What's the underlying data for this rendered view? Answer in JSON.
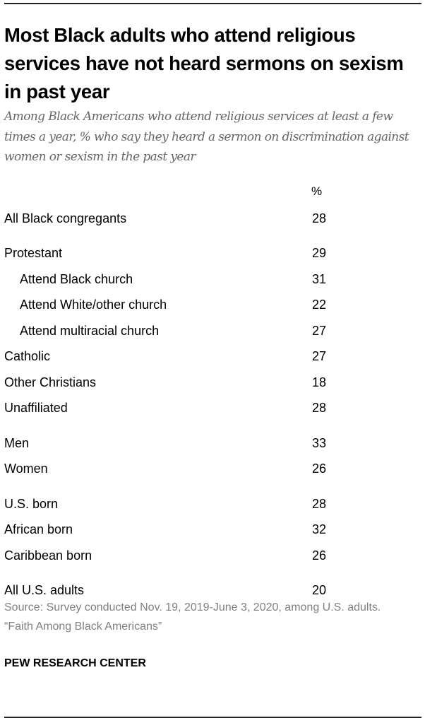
{
  "title": "Most Black adults who attend religious services have not heard sermons on sexism in past year",
  "subtitle": "Among Black Americans who attend religious services at least a few times a year, % who say they heard a sermon on discrimination against women or sexism in the past year",
  "source_line1": "Source: Survey conducted Nov. 19, 2019-June 3, 2020, among U.S. adults.",
  "source_line2": "“Faith Among Black Americans”",
  "credit": "PEW RESEARCH CENTER",
  "chart_data": {
    "type": "table",
    "column_header": "%",
    "groups": [
      [
        {
          "label": "All Black congregants",
          "value": 28,
          "indent": false
        }
      ],
      [
        {
          "label": "Protestant",
          "value": 29,
          "indent": false
        },
        {
          "label": "Attend Black church",
          "value": 31,
          "indent": true
        },
        {
          "label": "Attend White/other church",
          "value": 22,
          "indent": true
        },
        {
          "label": "Attend multiracial church",
          "value": 27,
          "indent": true
        },
        {
          "label": "Catholic",
          "value": 27,
          "indent": false
        },
        {
          "label": "Other Christians",
          "value": 18,
          "indent": false
        },
        {
          "label": "Unaffiliated",
          "value": 28,
          "indent": false
        }
      ],
      [
        {
          "label": "Men",
          "value": 33,
          "indent": false
        },
        {
          "label": "Women",
          "value": 26,
          "indent": false
        }
      ],
      [
        {
          "label": "U.S. born",
          "value": 28,
          "indent": false
        },
        {
          "label": "African born",
          "value": 32,
          "indent": false
        },
        {
          "label": "Caribbean born",
          "value": 26,
          "indent": false
        }
      ],
      [
        {
          "label": "All U.S. adults",
          "value": 20,
          "indent": false
        }
      ]
    ]
  }
}
